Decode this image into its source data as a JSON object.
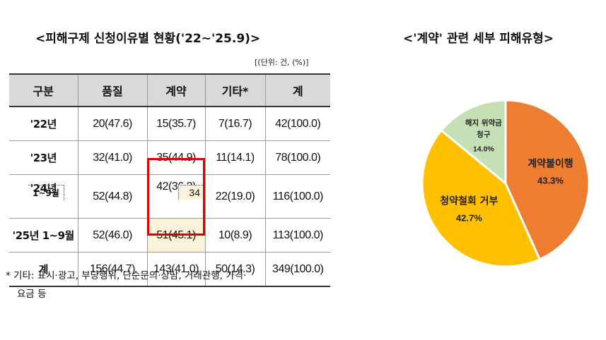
{
  "table_title": "<피해구제 신청이유별 현황('22~'25.9)>",
  "unit": "[(단위: 건, (%)]",
  "headers": [
    "구분",
    "품질",
    "계약",
    "기타*",
    "계"
  ],
  "rows": [
    {
      "label": "'22년",
      "quality": "20(47.6)",
      "contract": "15(35.7)",
      "etc": "7(16.7)",
      "total": "42(100.0)"
    },
    {
      "label": "'23년",
      "quality": "32(41.0)",
      "contract": "35(44.9)",
      "etc": "11(14.1)",
      "total": "78(100.0)"
    },
    {
      "label": "'24년",
      "quality": "52(44.8)",
      "contract": "42(36.2)",
      "etc": "22(19.0)",
      "total": "116(100.0)",
      "sub_label": "1~9월",
      "sub_value": "34"
    },
    {
      "label": "'25년 1~9월",
      "quality": "52(46.0)",
      "contract": "51(45.1)",
      "etc": "10(8.9)",
      "total": "113(100.0)"
    },
    {
      "label": "계",
      "quality": "156(44.7)",
      "contract": "143(41.0)",
      "etc": "50(14.3)",
      "total": "349(100.0)"
    }
  ],
  "footnote_line1": "* 기타: 표시·광고, 부당행위, 단순문의·상담, 거래관행, 가격·",
  "footnote_line2": "요금 등",
  "colors": {
    "header_bg": "#d9d9d9",
    "highlight": "#e00000",
    "cell_highlight": "#fbf2dc"
  },
  "chart_data": {
    "type": "pie",
    "title": "<'계약' 관련 세부 피해유형>",
    "slices": [
      {
        "label": "계약불이행",
        "value": 43.3,
        "display": "43.3%",
        "color": "#ed7d31"
      },
      {
        "label": "청약철회 거부",
        "value": 42.7,
        "display": "42.7%",
        "color": "#ffc000"
      },
      {
        "label": "해지 위약금 청구",
        "label_lines": [
          "해지 위약금",
          "청구"
        ],
        "value": 14.0,
        "display": "14.0%",
        "color": "#c5e0b4"
      }
    ],
    "legend": "none"
  }
}
